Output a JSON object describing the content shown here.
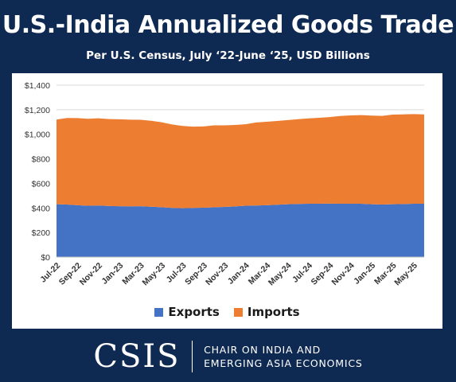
{
  "header": {
    "title": "U.S.-India Annualized Goods Trade",
    "subtitle": "Per U.S. Census, July ‘22-June ‘25, USD Billions"
  },
  "footer": {
    "logo_text": "CSIS",
    "program_line1": "CHAIR ON INDIA AND",
    "program_line2": "EMERGING ASIA ECONOMICS"
  },
  "colors": {
    "background": "#0f2a52",
    "exports": "#4472c4",
    "imports": "#ed7d31"
  },
  "chart_data": {
    "type": "area",
    "stacked": true,
    "title": "",
    "xlabel": "",
    "ylabel": "",
    "ylim": [
      0,
      1400
    ],
    "yticks": [
      "$0",
      "$200",
      "$400",
      "$600",
      "$800",
      "$1,000",
      "$1,200",
      "$1,400"
    ],
    "grid": true,
    "legend_position": "bottom",
    "categories": [
      "Jul-22",
      "Aug-22",
      "Sep-22",
      "Oct-22",
      "Nov-22",
      "Dec-22",
      "Jan-23",
      "Feb-23",
      "Mar-23",
      "Apr-23",
      "May-23",
      "Jun-23",
      "Jul-23",
      "Aug-23",
      "Sep-23",
      "Oct-23",
      "Nov-23",
      "Dec-23",
      "Jan-24",
      "Feb-24",
      "Mar-24",
      "Apr-24",
      "May-24",
      "Jun-24",
      "Jul-24",
      "Aug-24",
      "Sep-24",
      "Oct-24",
      "Nov-24",
      "Dec-24",
      "Jan-25",
      "Feb-25",
      "Mar-25",
      "Apr-25",
      "May-25",
      "Jun-25"
    ],
    "tick_labels": [
      "Jul-22",
      "Sep-22",
      "Nov-22",
      "Jan-23",
      "Mar-23",
      "May-23",
      "Jul-23",
      "Sep-23",
      "Nov-23",
      "Jan-24",
      "Mar-24",
      "May-24",
      "Jul-24",
      "Sep-24",
      "Nov-24",
      "Jan-25",
      "Mar-25",
      "May-25"
    ],
    "series": [
      {
        "name": "Exports",
        "values": [
          430,
          428,
          422,
          418,
          420,
          416,
          414,
          413,
          414,
          410,
          406,
          400,
          398,
          400,
          402,
          405,
          408,
          412,
          418,
          420,
          422,
          426,
          430,
          433,
          434,
          434,
          435,
          434,
          434,
          434,
          430,
          428,
          430,
          432,
          434,
          434
        ]
      },
      {
        "name": "Imports",
        "values": [
          690,
          705,
          710,
          708,
          710,
          708,
          708,
          706,
          704,
          700,
          692,
          680,
          670,
          662,
          662,
          668,
          665,
          664,
          664,
          676,
          680,
          682,
          686,
          690,
          695,
          700,
          705,
          715,
          720,
          722,
          722,
          722,
          730,
          730,
          730,
          728
        ]
      }
    ]
  }
}
